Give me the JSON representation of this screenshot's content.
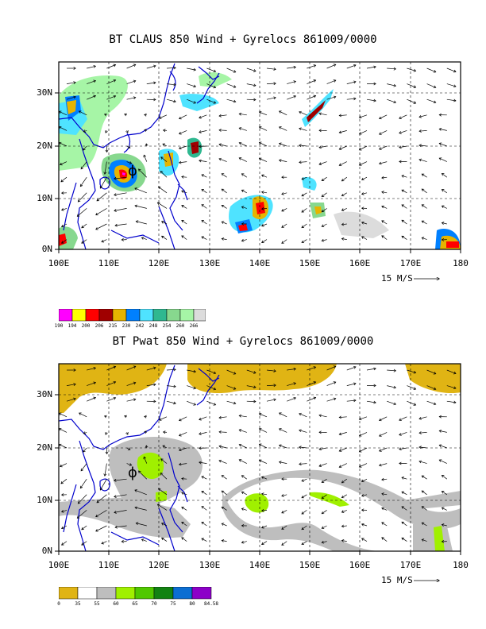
{
  "maps": [
    {
      "title": "BT CLAUS 850 Wind + Gyrelocs 861009/0000",
      "field": "CLAUS brightness temperature",
      "lat_labels": [
        "30N",
        "20N",
        "10N",
        "0N"
      ],
      "lon_labels": [
        "100E",
        "110E",
        "120E",
        "130E",
        "140E",
        "150E",
        "160E",
        "170E",
        "180"
      ],
      "ref_vector": "15 M/S",
      "storm_symbol": "ϕ",
      "colorbar": {
        "labels": [
          "190",
          "194",
          "200",
          "206",
          "215",
          "230",
          "242",
          "248",
          "254",
          "260",
          "266"
        ],
        "colors": [
          "#ff00ff",
          "#ffff00",
          "#ff0000",
          "#a00000",
          "#e6b400",
          "#0080ff",
          "#4fe3ff",
          "#2fb890",
          "#87d88e",
          "#a6f5a6",
          "#dcdcdc"
        ]
      }
    },
    {
      "title": "BT Pwat 850 Wind + Gyrelocs 861009/0000",
      "field": "Precipitable water",
      "lat_labels": [
        "30N",
        "20N",
        "10N",
        "0N"
      ],
      "lon_labels": [
        "100E",
        "110E",
        "120E",
        "130E",
        "140E",
        "150E",
        "160E",
        "170E",
        "180"
      ],
      "ref_vector": "15 M/S",
      "storm_symbol": "ϕ",
      "colorbar": {
        "labels": [
          "0",
          "35",
          "55",
          "60",
          "65",
          "70",
          "75",
          "80",
          "84.58"
        ],
        "colors": [
          "#e0b414",
          "#ffffff",
          "#bebebe",
          "#a0f000",
          "#50c800",
          "#128212",
          "#0b6ed2",
          "#8c00c8"
        ]
      }
    }
  ]
}
